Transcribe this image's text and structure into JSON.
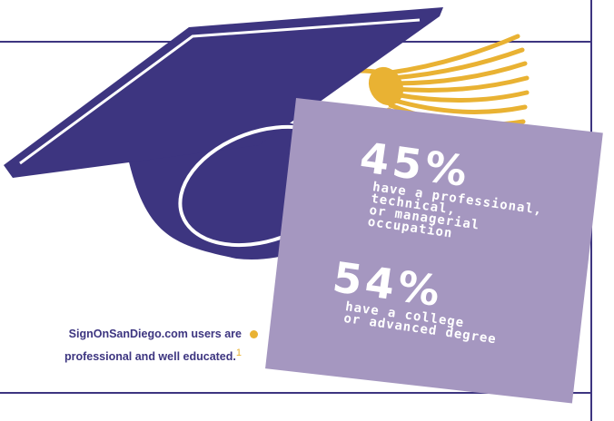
{
  "colors": {
    "navy": "#3d3580",
    "lavender": "#a597c0",
    "gold": "#e9b233",
    "white": "#ffffff"
  },
  "stats": [
    {
      "value": "45%",
      "description": "have a professional,\ntechnical,\nor managerial\noccupation"
    },
    {
      "value": "54%",
      "description": "have a college\nor advanced degree"
    }
  ],
  "caption": {
    "line1": "SignOnSanDiego.com users are",
    "line2": "professional and well educated.",
    "footnote": "1"
  },
  "icons": [
    "graduation-cap-icon",
    "tassel-icon",
    "bullet-dot-icon"
  ]
}
